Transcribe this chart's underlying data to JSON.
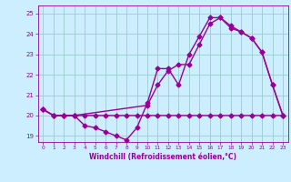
{
  "line1_x": [
    0,
    1,
    2,
    3,
    4,
    5,
    6,
    7,
    8,
    9,
    10,
    11,
    12,
    13,
    14,
    15,
    16,
    17,
    18,
    19,
    20,
    21,
    22,
    23
  ],
  "line1_y": [
    20.3,
    20.0,
    20.0,
    20.0,
    20.0,
    20.0,
    20.0,
    20.0,
    20.0,
    20.0,
    20.0,
    20.0,
    20.0,
    20.0,
    20.0,
    20.0,
    20.0,
    20.0,
    20.0,
    20.0,
    20.0,
    20.0,
    20.0,
    20.0
  ],
  "line2_x": [
    0,
    1,
    2,
    3,
    4,
    5,
    6,
    7,
    8,
    9,
    10,
    11,
    12,
    13,
    14,
    15,
    16,
    17,
    18,
    19,
    20,
    21,
    22,
    23
  ],
  "line2_y": [
    20.3,
    20.0,
    20.0,
    20.0,
    19.5,
    19.4,
    19.2,
    19.0,
    18.8,
    19.4,
    20.6,
    22.3,
    22.3,
    21.5,
    23.0,
    23.9,
    24.8,
    24.8,
    24.3,
    24.1,
    23.8,
    23.1,
    21.5,
    20.0
  ],
  "line3_x": [
    0,
    1,
    2,
    3,
    10,
    11,
    12,
    13,
    14,
    15,
    16,
    17,
    18,
    19,
    20,
    21,
    22,
    23
  ],
  "line3_y": [
    20.3,
    20.0,
    20.0,
    20.0,
    20.5,
    21.5,
    22.2,
    22.5,
    22.5,
    23.5,
    24.5,
    24.8,
    24.4,
    24.1,
    23.8,
    23.1,
    21.5,
    20.0
  ],
  "color": "#990099",
  "bg_color": "#cceeff",
  "grid_color": "#99cccc",
  "xlabel": "Windchill (Refroidissement éolien,°C)",
  "ylim": [
    18.7,
    25.4
  ],
  "xlim": [
    -0.5,
    23.5
  ],
  "yticks": [
    19,
    20,
    21,
    22,
    23,
    24,
    25
  ],
  "xticks": [
    0,
    1,
    2,
    3,
    4,
    5,
    6,
    7,
    8,
    9,
    10,
    11,
    12,
    13,
    14,
    15,
    16,
    17,
    18,
    19,
    20,
    21,
    22,
    23
  ],
  "marker": "D",
  "markersize": 2.5,
  "linewidth": 1.0
}
